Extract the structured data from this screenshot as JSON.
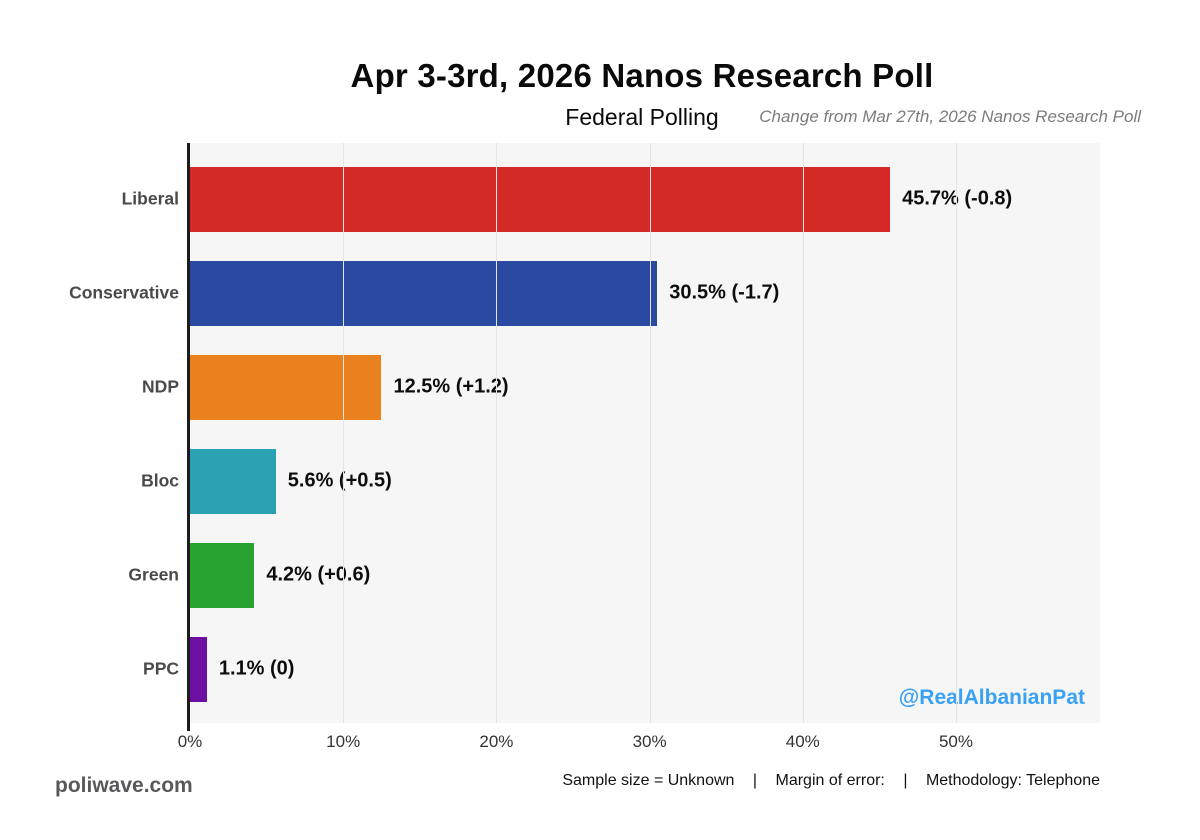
{
  "header": {
    "title": "Apr 3-3rd, 2026 Nanos Research Poll",
    "subtitle": "Federal Polling",
    "change_note": "Change from Mar 27th, 2026 Nanos Research Poll"
  },
  "chart_data": {
    "type": "bar",
    "orientation": "horizontal",
    "title": "Apr 3-3rd, 2026 Nanos Research Poll",
    "subtitle": "Federal Polling",
    "categories": [
      "Liberal",
      "Conservative",
      "NDP",
      "Bloc",
      "Green",
      "PPC"
    ],
    "values": [
      45.7,
      30.5,
      12.5,
      5.6,
      4.2,
      1.1
    ],
    "changes": [
      -0.8,
      -1.7,
      1.2,
      0.5,
      0.6,
      0
    ],
    "value_labels": [
      "45.7% (-0.8)",
      "30.5% (-1.7)",
      "12.5% (+1.2)",
      "5.6% (+0.5)",
      "4.2% (+0.6)",
      "1.1% (0)"
    ],
    "bar_colors": [
      "#d32a28",
      "#2a4aa2",
      "#e8811e",
      "#2ba1b4",
      "#28a230",
      "#6c10a1"
    ],
    "xlim": [
      0,
      59.4
    ],
    "x_tick_values": [
      0,
      10,
      20,
      30,
      40,
      50
    ],
    "x_tick_labels": [
      "0%",
      "10%",
      "20%",
      "30%",
      "40%",
      "50%"
    ],
    "grid": true,
    "legend": false,
    "plot_bg": "#f6f6f6",
    "grid_color": "#e4e4e4",
    "axis_color": "#1c1c1c"
  },
  "watermark": {
    "label": "@RealAlbanianPat",
    "color": "#3aa1f3"
  },
  "branding": {
    "site": "poliwave.com"
  },
  "footer": {
    "sample_size": "Sample size = Unknown",
    "divider": "|",
    "margin_of_error": "Margin of error:",
    "methodology": "Methodology: Telephone"
  }
}
